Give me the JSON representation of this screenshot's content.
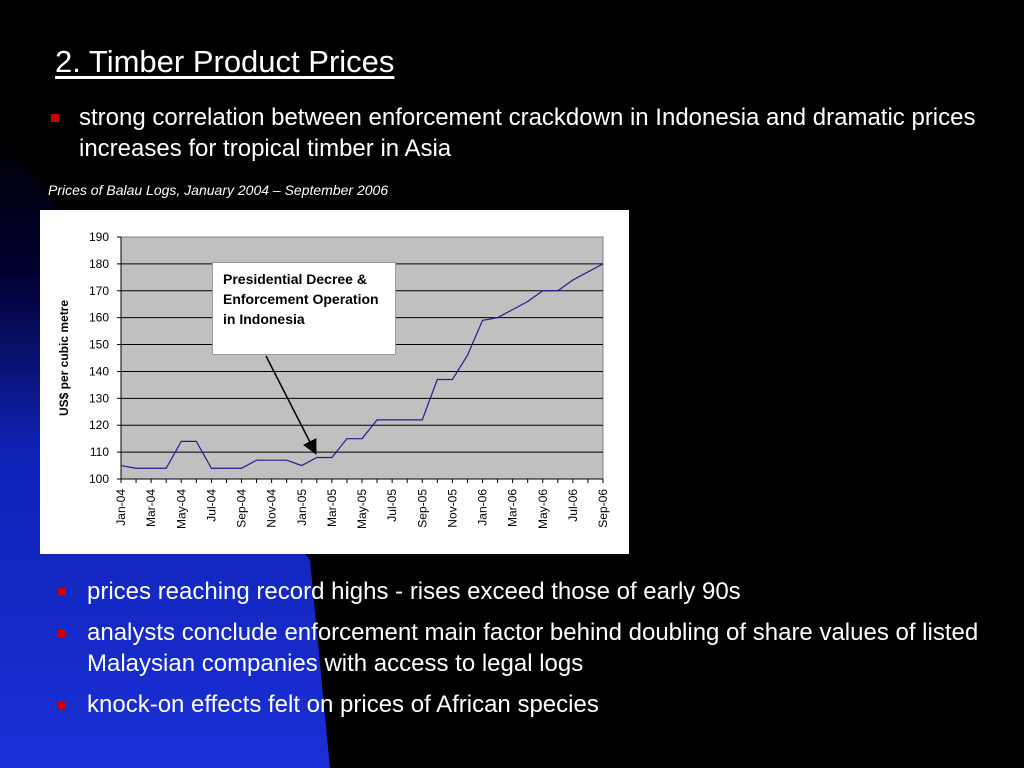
{
  "slide": {
    "title": "2. Timber Product Prices",
    "bullets_top": [
      "strong correlation between enforcement crackdown in Indonesia and dramatic prices increases for tropical timber in Asia"
    ],
    "bullets_bottom": [
      "prices reaching record highs - rises exceed those of early 90s",
      "analysts conclude enforcement main factor behind doubling of share values of listed Malaysian companies with access to legal logs",
      "knock-on effects felt on prices of African species"
    ],
    "caption": "Prices of  Balau Logs, January 2004 – September 2006",
    "colors": {
      "background": "#000000",
      "wedge": "#1a2fd6",
      "bullet": "#cc0000",
      "plot_area": "#c0c0c0",
      "series_line": "#1f1f8f"
    }
  },
  "chart_data": {
    "type": "line",
    "title": "",
    "ylabel": "US$ per cubic metre",
    "xlabel": "",
    "ylim": [
      100,
      190
    ],
    "yticks": [
      100,
      110,
      120,
      130,
      140,
      150,
      160,
      170,
      180,
      190
    ],
    "grid": true,
    "xtick_labels": [
      "Jan-04",
      "Mar-04",
      "May-04",
      "Jul-04",
      "Sep-04",
      "Nov-04",
      "Jan-05",
      "Mar-05",
      "May-05",
      "Jul-05",
      "Sep-05",
      "Nov-05",
      "Jan-06",
      "Mar-06",
      "May-06",
      "Jul-06",
      "Sep-06"
    ],
    "annotation": {
      "text": "Presidential Decree & Enforcement Operation in Indonesia",
      "points_to": "Feb-05"
    },
    "series": [
      {
        "name": "",
        "x": [
          "Jan-04",
          "Feb-04",
          "Mar-04",
          "Apr-04",
          "May-04",
          "Jun-04",
          "Jul-04",
          "Aug-04",
          "Sep-04",
          "Oct-04",
          "Nov-04",
          "Dec-04",
          "Jan-05",
          "Feb-05",
          "Mar-05",
          "Apr-05",
          "May-05",
          "Jun-05",
          "Jul-05",
          "Aug-05",
          "Sep-05",
          "Oct-05",
          "Nov-05",
          "Dec-05",
          "Jan-06",
          "Feb-06",
          "Mar-06",
          "Apr-06",
          "May-06",
          "Jun-06",
          "Jul-06",
          "Aug-06",
          "Sep-06"
        ],
        "values": [
          105,
          104,
          104,
          104,
          114,
          114,
          104,
          104,
          104,
          107,
          107,
          107,
          105,
          108,
          108,
          115,
          115,
          122,
          122,
          122,
          122,
          137,
          137,
          146,
          159,
          160,
          163,
          166,
          170,
          170,
          174,
          177,
          180
        ]
      }
    ]
  }
}
